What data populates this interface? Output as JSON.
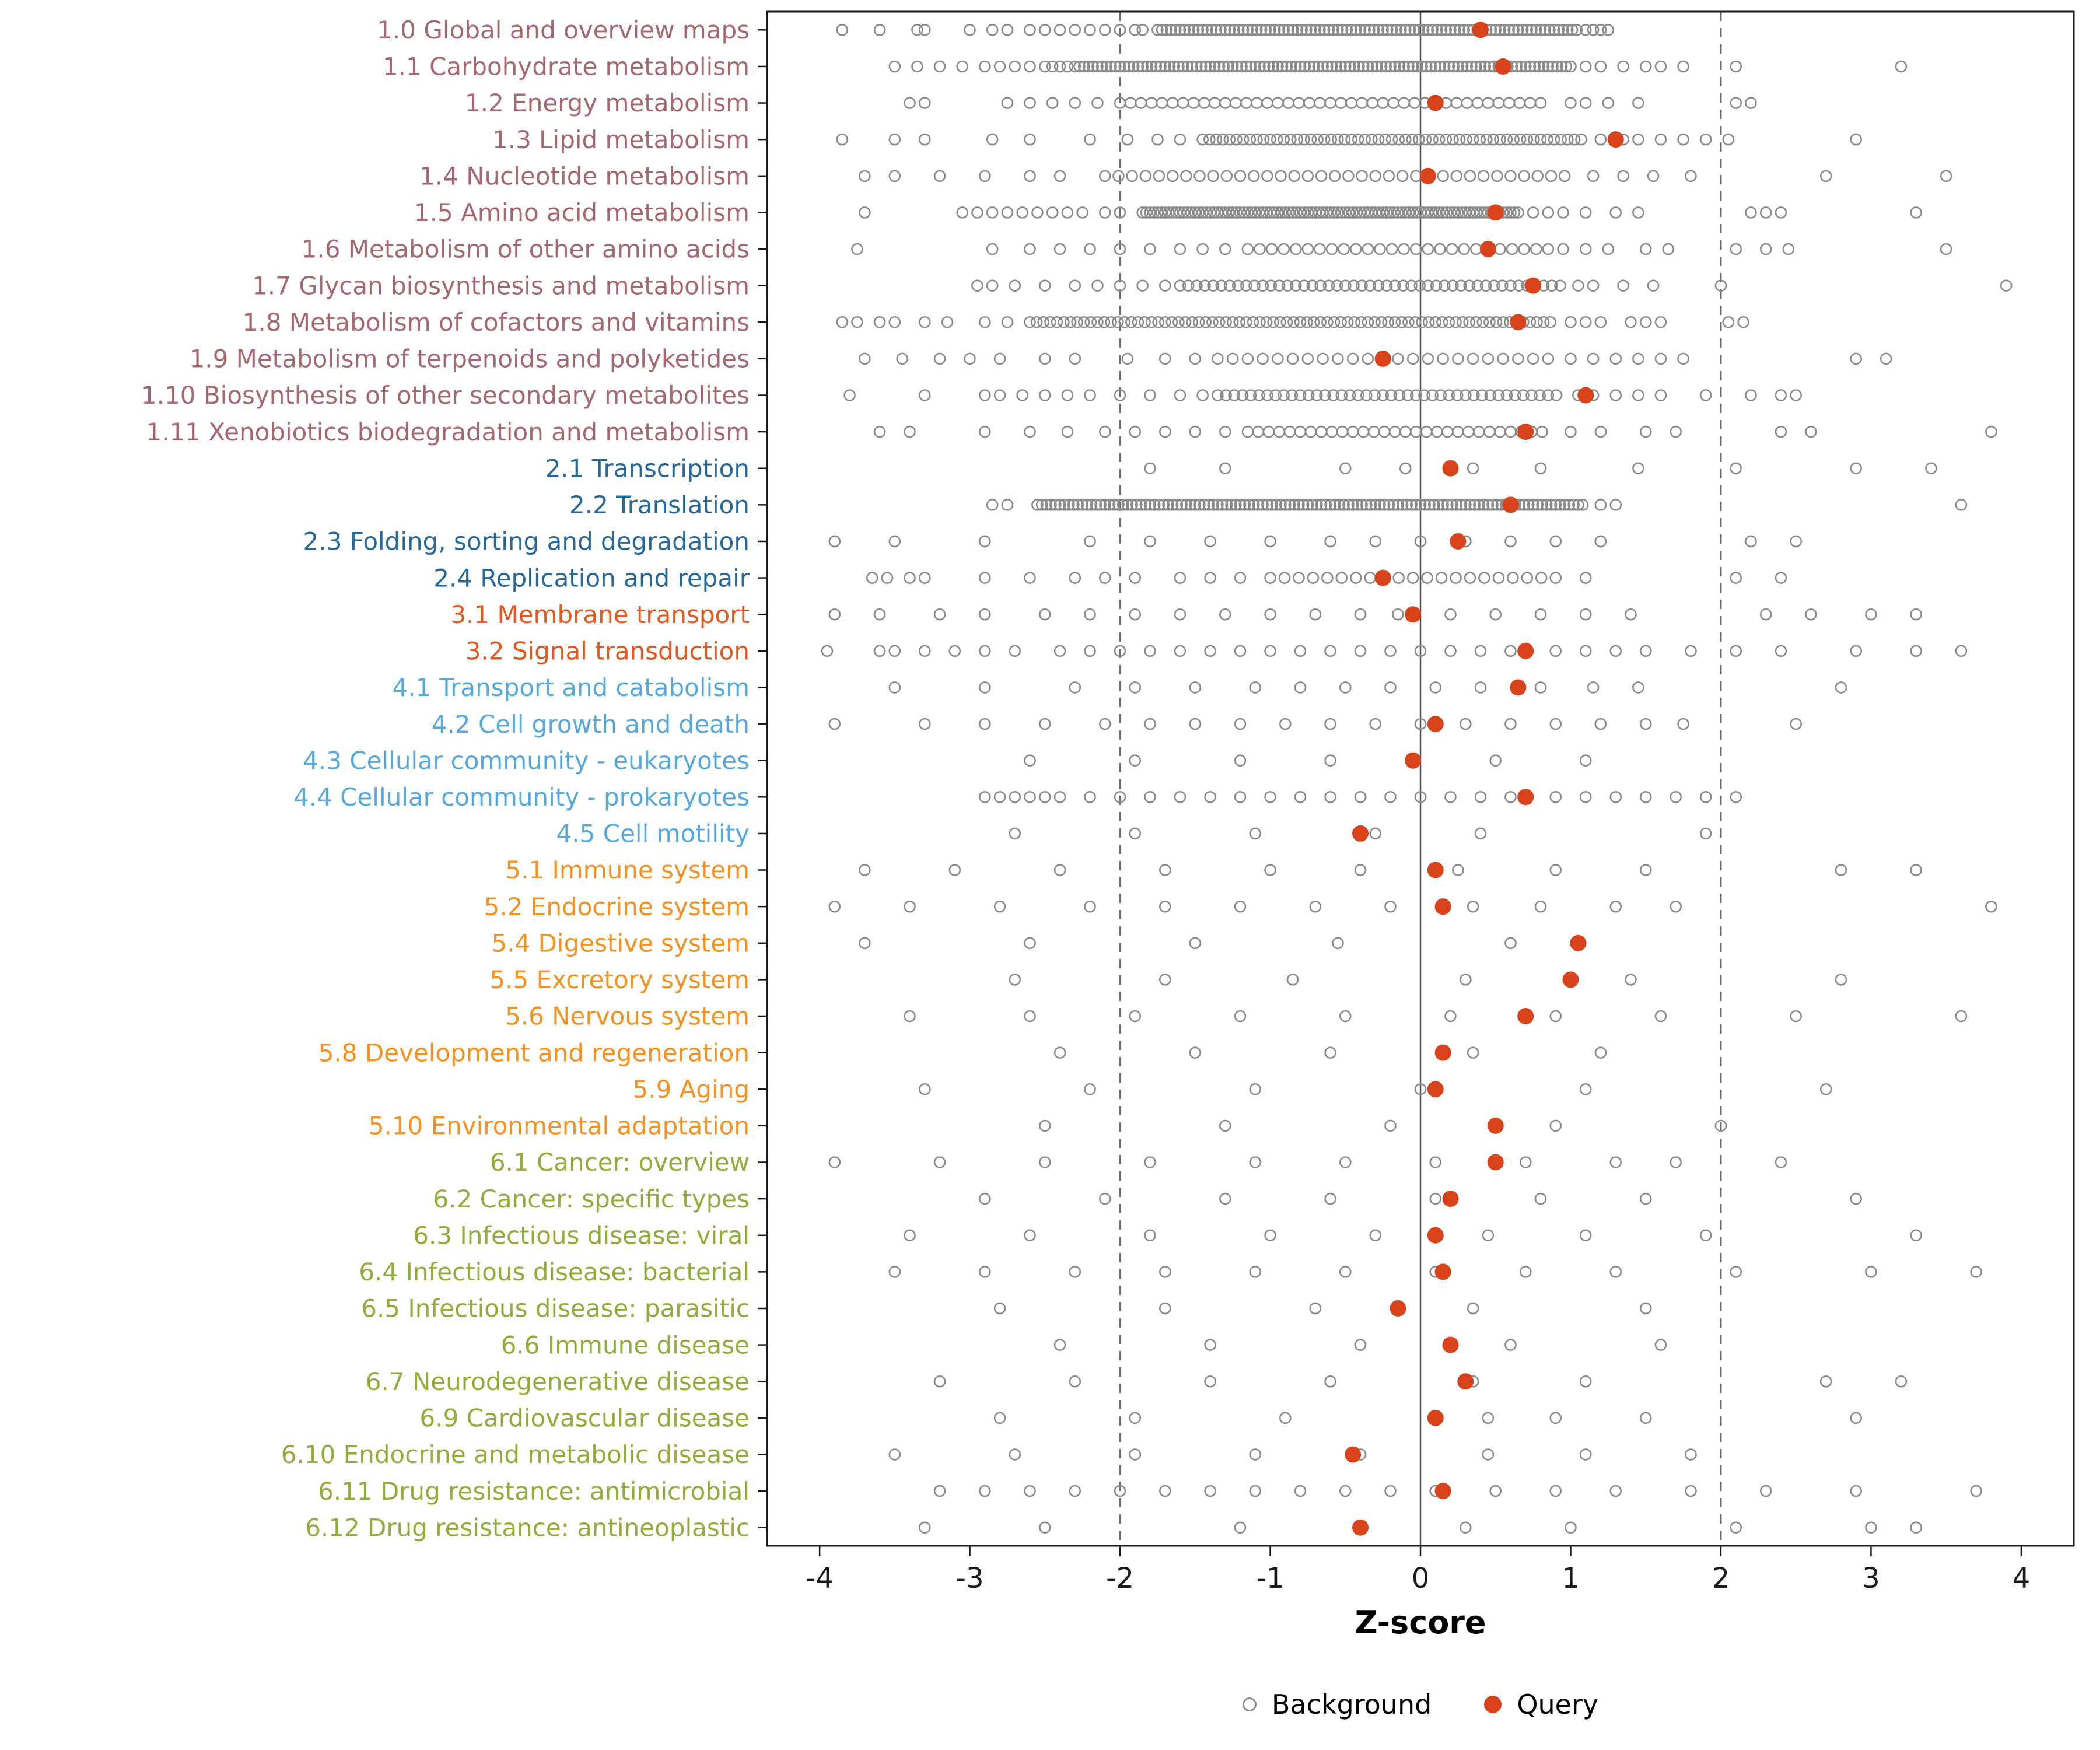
{
  "chart_data": {
    "type": "scatter",
    "title": "",
    "xlabel": "Z-score",
    "ylabel": "",
    "xlim": [
      -4.35,
      4.35
    ],
    "x_ticks": [
      -4,
      -3,
      -2,
      -1,
      0,
      1,
      2,
      3,
      4
    ],
    "grid": false,
    "reference_lines": {
      "solid": [
        0
      ],
      "dashed": [
        -2,
        2
      ]
    },
    "legend_position": "bottom",
    "legend": [
      {
        "label": "Background",
        "marker": "open-circle",
        "color": "#8a8a8a"
      },
      {
        "label": "Query",
        "marker": "filled-circle",
        "color": "#d8431c"
      }
    ],
    "colors": {
      "query": "#d8431c",
      "background_stroke": "#8a8a8a",
      "ref_line": "#6e6e6e",
      "zero_line": "#4d4d4d",
      "panel_border": "#1a1a1a",
      "tick_text": "#1a1a1a",
      "group_colors": {
        "g1": "#a5686f",
        "g2": "#26689a",
        "g3": "#e4571e",
        "g4": "#56a8dc",
        "g5": "#f59120",
        "g6": "#90ad3c"
      }
    },
    "categories": [
      {
        "label": "1.0 Global and overview maps",
        "group": "g1",
        "query": 0.4,
        "background_bands": [
          [
            -1.75,
            1.05,
            0.03
          ]
        ],
        "background": [
          -3.85,
          -3.6,
          -3.35,
          -3.3,
          -3.0,
          -2.85,
          -2.75,
          -2.6,
          -2.5,
          -2.4,
          -2.3,
          -2.2,
          -2.1,
          -2.0,
          -1.9,
          -1.85,
          1.1,
          1.15,
          1.2,
          1.25
        ]
      },
      {
        "label": "1.1 Carbohydrate metabolism",
        "group": "g1",
        "query": 0.55,
        "background_bands": [
          [
            -2.3,
            1.0,
            0.03
          ]
        ],
        "background": [
          -3.5,
          -3.35,
          -3.2,
          -3.05,
          -2.9,
          -2.8,
          -2.7,
          -2.6,
          -2.5,
          -2.45,
          -2.4,
          -2.35,
          1.1,
          1.2,
          1.35,
          1.5,
          1.6,
          1.75,
          2.1,
          3.2
        ]
      },
      {
        "label": "1.2 Energy metabolism",
        "group": "g1",
        "query": 0.1,
        "background_bands": [
          [
            -2.0,
            0.85,
            0.07
          ]
        ],
        "background": [
          -3.4,
          -3.3,
          -2.75,
          -2.6,
          -2.45,
          -2.3,
          -2.15,
          1.0,
          1.1,
          1.25,
          1.45,
          2.1,
          2.2
        ]
      },
      {
        "label": "1.3 Lipid metabolism",
        "group": "g1",
        "query": 1.3,
        "background_bands": [
          [
            -1.45,
            1.1,
            0.045
          ]
        ],
        "background": [
          -3.85,
          -3.5,
          -3.3,
          -2.85,
          -2.6,
          -2.2,
          -1.95,
          -1.75,
          -1.6,
          1.2,
          1.35,
          1.45,
          1.6,
          1.75,
          1.9,
          2.05,
          2.9
        ]
      },
      {
        "label": "1.4 Nucleotide metabolism",
        "group": "g1",
        "query": 0.05,
        "background_bands": [
          [
            -2.1,
            1.0,
            0.09
          ]
        ],
        "background": [
          -3.7,
          -3.5,
          -3.2,
          -2.9,
          -2.6,
          -2.4,
          1.15,
          1.35,
          1.55,
          1.8,
          2.7,
          3.5
        ]
      },
      {
        "label": "1.5 Amino acid metabolism",
        "group": "g1",
        "query": 0.5,
        "background_bands": [
          [
            -1.85,
            0.65,
            0.025
          ]
        ],
        "background": [
          -3.7,
          -3.05,
          -2.95,
          -2.85,
          -2.75,
          -2.65,
          -2.55,
          -2.45,
          -2.35,
          -2.25,
          -2.1,
          -2.0,
          0.75,
          0.85,
          0.95,
          1.1,
          1.3,
          1.45,
          2.2,
          2.3,
          2.4,
          3.3
        ]
      },
      {
        "label": "1.6 Metabolism of other amino acids",
        "group": "g1",
        "query": 0.45,
        "background_bands": [
          [
            -1.15,
            0.85,
            0.08
          ]
        ],
        "background": [
          -3.75,
          -2.85,
          -2.6,
          -2.4,
          -2.2,
          -2.0,
          -1.8,
          -1.6,
          -1.45,
          -1.3,
          0.95,
          1.1,
          1.25,
          1.5,
          1.65,
          2.1,
          2.3,
          2.45,
          3.5
        ]
      },
      {
        "label": "1.7 Glycan biosynthesis and metabolism",
        "group": "g1",
        "query": 0.75,
        "background_bands": [
          [
            -1.6,
            0.95,
            0.055
          ]
        ],
        "background": [
          -2.95,
          -2.85,
          -2.7,
          -2.5,
          -2.3,
          -2.15,
          -2.0,
          -1.85,
          -1.7,
          1.05,
          1.15,
          1.35,
          1.55,
          2.0,
          3.9
        ]
      },
      {
        "label": "1.8 Metabolism of cofactors and vitamins",
        "group": "g1",
        "query": 0.65,
        "background_bands": [
          [
            -2.6,
            0.9,
            0.045
          ]
        ],
        "background": [
          -3.85,
          -3.75,
          -3.6,
          -3.5,
          -3.3,
          -3.15,
          -2.9,
          -2.75,
          1.0,
          1.1,
          1.2,
          1.4,
          1.5,
          1.6,
          2.05,
          2.15
        ]
      },
      {
        "label": "1.9 Metabolism of terpenoids and polyketides",
        "group": "g1",
        "query": -0.25,
        "background_bands": [
          [
            -1.25,
            0.9,
            0.1
          ]
        ],
        "background": [
          -3.7,
          -3.45,
          -3.2,
          -3.0,
          -2.8,
          -2.5,
          -2.3,
          -1.95,
          -1.7,
          -1.5,
          -1.35,
          1.0,
          1.15,
          1.3,
          1.45,
          1.6,
          1.75,
          2.9,
          3.1
        ]
      },
      {
        "label": "1.10 Biosynthesis of other secondary metabolites",
        "group": "g1",
        "query": 1.1,
        "background_bands": [
          [
            -1.35,
            0.95,
            0.055
          ]
        ],
        "background": [
          -3.8,
          -3.3,
          -2.9,
          -2.8,
          -2.65,
          -2.5,
          -2.35,
          -2.2,
          -2.0,
          -1.8,
          -1.6,
          -1.45,
          1.05,
          1.15,
          1.3,
          1.45,
          1.6,
          1.9,
          2.2,
          2.4,
          2.5
        ]
      },
      {
        "label": "1.11 Xenobiotics biodegradation and metabolism",
        "group": "g1",
        "query": 0.7,
        "background_bands": [
          [
            -1.15,
            0.85,
            0.07
          ]
        ],
        "background": [
          -3.6,
          -3.4,
          -2.9,
          -2.6,
          -2.35,
          -2.1,
          -1.9,
          -1.7,
          -1.5,
          -1.3,
          1.0,
          1.2,
          1.5,
          1.7,
          2.4,
          2.6,
          3.8
        ]
      },
      {
        "label": "2.1 Transcription",
        "group": "g2",
        "query": 0.2,
        "background_bands": [],
        "background": [
          -1.8,
          -1.3,
          -0.5,
          -0.1,
          0.35,
          0.8,
          1.45,
          2.1,
          2.9,
          3.4
        ]
      },
      {
        "label": "2.2 Translation",
        "group": "g2",
        "query": 0.6,
        "background_bands": [
          [
            -2.55,
            1.1,
            0.03
          ]
        ],
        "background": [
          -2.85,
          -2.75,
          1.2,
          1.3,
          3.6
        ]
      },
      {
        "label": "2.3 Folding, sorting and degradation",
        "group": "g2",
        "query": 0.25,
        "background_bands": [],
        "background": [
          -3.9,
          -3.5,
          -2.9,
          -2.2,
          -1.8,
          -1.4,
          -1.0,
          -0.6,
          -0.3,
          0.0,
          0.3,
          0.6,
          0.9,
          1.2,
          2.2,
          2.5
        ]
      },
      {
        "label": "2.4 Replication and repair",
        "group": "g2",
        "query": -0.25,
        "background_bands": [
          [
            -1.0,
            0.9,
            0.095
          ]
        ],
        "background": [
          -3.65,
          -3.55,
          -3.4,
          -3.3,
          -2.9,
          -2.6,
          -2.3,
          -2.1,
          -1.9,
          -1.6,
          -1.4,
          -1.2,
          1.1,
          2.1,
          2.4
        ]
      },
      {
        "label": "3.1 Membrane transport",
        "group": "g3",
        "query": -0.05,
        "background_bands": [],
        "background": [
          -3.9,
          -3.6,
          -3.2,
          -2.9,
          -2.5,
          -2.2,
          -1.9,
          -1.6,
          -1.3,
          -1.0,
          -0.7,
          -0.4,
          -0.15,
          0.2,
          0.5,
          0.8,
          1.1,
          1.4,
          2.3,
          2.6,
          3.0,
          3.3
        ]
      },
      {
        "label": "3.2 Signal transduction",
        "group": "g3",
        "query": 0.7,
        "background_bands": [],
        "background": [
          -3.95,
          -3.6,
          -3.5,
          -3.3,
          -3.1,
          -2.9,
          -2.7,
          -2.4,
          -2.2,
          -2.0,
          -1.8,
          -1.6,
          -1.4,
          -1.2,
          -1.0,
          -0.8,
          -0.6,
          -0.4,
          -0.2,
          0.0,
          0.2,
          0.4,
          0.6,
          0.9,
          1.1,
          1.3,
          1.5,
          1.8,
          2.1,
          2.4,
          2.9,
          3.3,
          3.6
        ]
      },
      {
        "label": "4.1 Transport and catabolism",
        "group": "g4",
        "query": 0.65,
        "background_bands": [],
        "background": [
          -3.5,
          -2.9,
          -2.3,
          -1.9,
          -1.5,
          -1.1,
          -0.8,
          -0.5,
          -0.2,
          0.1,
          0.4,
          0.8,
          1.15,
          1.45,
          2.8
        ]
      },
      {
        "label": "4.2 Cell growth and death",
        "group": "g4",
        "query": 0.1,
        "background_bands": [],
        "background": [
          -3.9,
          -3.3,
          -2.9,
          -2.5,
          -2.1,
          -1.8,
          -1.5,
          -1.2,
          -0.9,
          -0.6,
          -0.3,
          0.0,
          0.3,
          0.6,
          0.9,
          1.2,
          1.5,
          1.75,
          2.5
        ]
      },
      {
        "label": "4.3 Cellular community - eukaryotes",
        "group": "g4",
        "query": -0.05,
        "background_bands": [],
        "background": [
          -2.6,
          -1.9,
          -1.2,
          -0.6,
          0.5,
          1.1
        ]
      },
      {
        "label": "4.4 Cellular community - prokaryotes",
        "group": "g4",
        "query": 0.7,
        "background_bands": [],
        "background": [
          -2.9,
          -2.8,
          -2.7,
          -2.6,
          -2.5,
          -2.4,
          -2.2,
          -2.0,
          -1.8,
          -1.6,
          -1.4,
          -1.2,
          -1.0,
          -0.8,
          -0.6,
          -0.4,
          -0.2,
          0.0,
          0.2,
          0.4,
          0.6,
          0.9,
          1.1,
          1.3,
          1.5,
          1.7,
          1.9,
          2.1
        ]
      },
      {
        "label": "4.5 Cell motility",
        "group": "g4",
        "query": -0.4,
        "background_bands": [],
        "background": [
          -2.7,
          -1.9,
          -1.1,
          -0.3,
          0.4,
          1.9
        ]
      },
      {
        "label": "5.1 Immune system",
        "group": "g5",
        "query": 0.1,
        "background_bands": [],
        "background": [
          -3.7,
          -3.1,
          -2.4,
          -1.7,
          -1.0,
          -0.4,
          0.25,
          0.9,
          1.5,
          2.8,
          3.3
        ]
      },
      {
        "label": "5.2 Endocrine system",
        "group": "g5",
        "query": 0.15,
        "background_bands": [],
        "background": [
          -3.9,
          -3.4,
          -2.8,
          -2.2,
          -1.7,
          -1.2,
          -0.7,
          -0.2,
          0.35,
          0.8,
          1.3,
          1.7,
          3.8
        ]
      },
      {
        "label": "5.4 Digestive system",
        "group": "g5",
        "query": 1.05,
        "background_bands": [],
        "background": [
          -3.7,
          -2.6,
          -1.5,
          -0.55,
          0.6
        ]
      },
      {
        "label": "5.5 Excretory system",
        "group": "g5",
        "query": 1.0,
        "background_bands": [],
        "background": [
          -2.7,
          -1.7,
          -0.85,
          0.3,
          1.4,
          2.8
        ]
      },
      {
        "label": "5.6 Nervous system",
        "group": "g5",
        "query": 0.7,
        "background_bands": [],
        "background": [
          -3.4,
          -2.6,
          -1.9,
          -1.2,
          -0.5,
          0.2,
          0.9,
          1.6,
          2.5,
          3.6
        ]
      },
      {
        "label": "5.8 Development and regeneration",
        "group": "g5",
        "query": 0.15,
        "background_bands": [],
        "background": [
          -2.4,
          -1.5,
          -0.6,
          0.35,
          1.2
        ]
      },
      {
        "label": "5.9 Aging",
        "group": "g5",
        "query": 0.1,
        "background_bands": [],
        "background": [
          -3.3,
          -2.2,
          -1.1,
          0.0,
          1.1,
          2.7
        ]
      },
      {
        "label": "5.10 Environmental adaptation",
        "group": "g5",
        "query": 0.5,
        "background_bands": [],
        "background": [
          -2.5,
          -1.3,
          -0.2,
          0.9,
          2.0
        ]
      },
      {
        "label": "6.1 Cancer: overview",
        "group": "g6",
        "query": 0.5,
        "background_bands": [],
        "background": [
          -3.9,
          -3.2,
          -2.5,
          -1.8,
          -1.1,
          -0.5,
          0.1,
          0.7,
          1.3,
          1.7,
          2.4
        ]
      },
      {
        "label": "6.2 Cancer: specific types",
        "group": "g6",
        "query": 0.2,
        "background_bands": [],
        "background": [
          -2.9,
          -2.1,
          -1.3,
          -0.6,
          0.1,
          0.8,
          1.5,
          2.9
        ]
      },
      {
        "label": "6.3 Infectious disease: viral",
        "group": "g6",
        "query": 0.1,
        "background_bands": [],
        "background": [
          -3.4,
          -2.6,
          -1.8,
          -1.0,
          -0.3,
          0.45,
          1.1,
          1.9,
          3.3
        ]
      },
      {
        "label": "6.4 Infectious disease: bacterial",
        "group": "g6",
        "query": 0.15,
        "background_bands": [],
        "background": [
          -3.5,
          -2.9,
          -2.3,
          -1.7,
          -1.1,
          -0.5,
          0.1,
          0.7,
          1.3,
          2.1,
          3.0,
          3.7
        ]
      },
      {
        "label": "6.5 Infectious disease: parasitic",
        "group": "g6",
        "query": -0.15,
        "background_bands": [],
        "background": [
          -2.8,
          -1.7,
          -0.7,
          0.35,
          1.5
        ]
      },
      {
        "label": "6.6 Immune disease",
        "group": "g6",
        "query": 0.2,
        "background_bands": [],
        "background": [
          -2.4,
          -1.4,
          -0.4,
          0.6,
          1.6
        ]
      },
      {
        "label": "6.7 Neurodegenerative disease",
        "group": "g6",
        "query": 0.3,
        "background_bands": [],
        "background": [
          -3.2,
          -2.3,
          -1.4,
          -0.6,
          0.35,
          1.1,
          2.7,
          3.2
        ]
      },
      {
        "label": "6.9 Cardiovascular disease",
        "group": "g6",
        "query": 0.1,
        "background_bands": [],
        "background": [
          -2.8,
          -1.9,
          -0.9,
          0.45,
          0.9,
          1.5,
          2.9
        ]
      },
      {
        "label": "6.10 Endocrine and metabolic disease",
        "group": "g6",
        "query": -0.45,
        "background_bands": [],
        "background": [
          -3.5,
          -2.7,
          -1.9,
          -1.1,
          -0.4,
          0.45,
          1.1,
          1.8
        ]
      },
      {
        "label": "6.11 Drug resistance: antimicrobial",
        "group": "g6",
        "query": 0.15,
        "background_bands": [],
        "background": [
          -3.2,
          -2.9,
          -2.6,
          -2.3,
          -2.0,
          -1.7,
          -1.4,
          -1.1,
          -0.8,
          -0.5,
          -0.2,
          0.1,
          0.5,
          0.9,
          1.3,
          1.8,
          2.3,
          2.9,
          3.7
        ]
      },
      {
        "label": "6.12 Drug resistance: antineoplastic",
        "group": "g6",
        "query": -0.4,
        "background_bands": [],
        "background": [
          -3.3,
          -2.5,
          -1.2,
          0.3,
          1.0,
          2.1,
          3.0,
          3.3
        ]
      }
    ]
  }
}
